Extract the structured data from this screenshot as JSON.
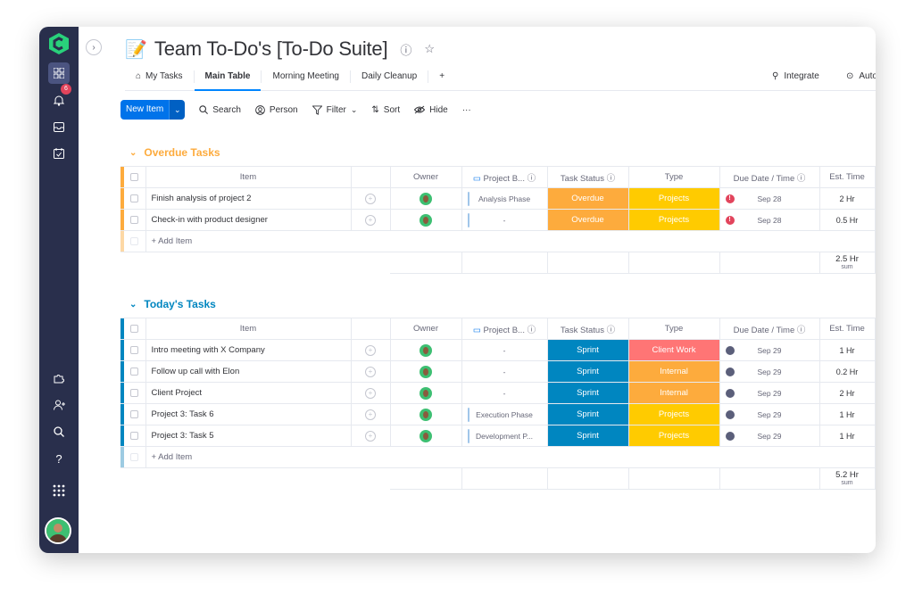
{
  "colors": {
    "sidebar": "#292f4c",
    "accent": "#0073ea",
    "overdue_group": "#fdab3d",
    "today_group": "#0086c0",
    "overdue": "#fdab3d",
    "sprint": "#0086c0",
    "projects": "#ffcb00",
    "client_work": "#ff7575",
    "internal": "#fdab3d"
  },
  "sidebar": {
    "notifications_count": "6",
    "icons": [
      "apps-icon",
      "bell-icon",
      "inbox-icon",
      "calendar-check-icon",
      "puzzle-icon",
      "add-user-icon",
      "search-icon",
      "help-icon",
      "grid-icon"
    ]
  },
  "board": {
    "icon": "📝",
    "title": "Team To-Do's [To-Do Suite]"
  },
  "tabs": [
    {
      "label": "My Tasks",
      "icon": "home-icon"
    },
    {
      "label": "Main Table",
      "active": true
    },
    {
      "label": "Morning Meeting"
    },
    {
      "label": "Daily Cleanup"
    },
    {
      "label": "+"
    }
  ],
  "right_actions": {
    "integrate": "Integrate",
    "automate": "Autom"
  },
  "toolbar": {
    "new_item": "New Item",
    "search": "Search",
    "person": "Person",
    "filter": "Filter",
    "sort": "Sort",
    "hide": "Hide",
    "more": "···"
  },
  "columns": {
    "item": "Item",
    "owner": "Owner",
    "project": "Project B...",
    "status": "Task Status",
    "type": "Type",
    "due": "Due Date / Time",
    "est": "Est. Time"
  },
  "groups": [
    {
      "title": "Overdue Tasks",
      "rows": [
        {
          "item": "Finish analysis of project 2",
          "project": "Analysis Phase",
          "status": "Overdue",
          "type": "Projects",
          "due": "Sep 28",
          "est": "2 Hr"
        },
        {
          "item": "Check-in with product designer",
          "project": "-",
          "status": "Overdue",
          "type": "Projects",
          "due": "Sep 28",
          "est": "0.5 Hr"
        }
      ],
      "add_label": "+ Add Item",
      "sum": "2.5 Hr",
      "sum_label": "sum"
    },
    {
      "title": "Today's Tasks",
      "rows": [
        {
          "item": "Intro meeting with X Company",
          "project": "-",
          "status": "Sprint",
          "type": "Client Work",
          "due": "Sep 29",
          "est": "1 Hr"
        },
        {
          "item": "Follow up call with Elon",
          "project": "-",
          "status": "Sprint",
          "type": "Internal",
          "due": "Sep 29",
          "est": "0.2 Hr"
        },
        {
          "item": "Client Project",
          "project": "-",
          "status": "Sprint",
          "type": "Internal",
          "due": "Sep 29",
          "est": "2 Hr"
        },
        {
          "item": "Project 3: Task 6",
          "project": "Execution Phase",
          "status": "Sprint",
          "type": "Projects",
          "due": "Sep 29",
          "est": "1 Hr"
        },
        {
          "item": "Project 3: Task 5",
          "project": "Development P...",
          "status": "Sprint",
          "type": "Projects",
          "due": "Sep 29",
          "est": "1 Hr"
        }
      ],
      "add_label": "+ Add Item",
      "sum": "5.2 Hr",
      "sum_label": "sum"
    }
  ]
}
